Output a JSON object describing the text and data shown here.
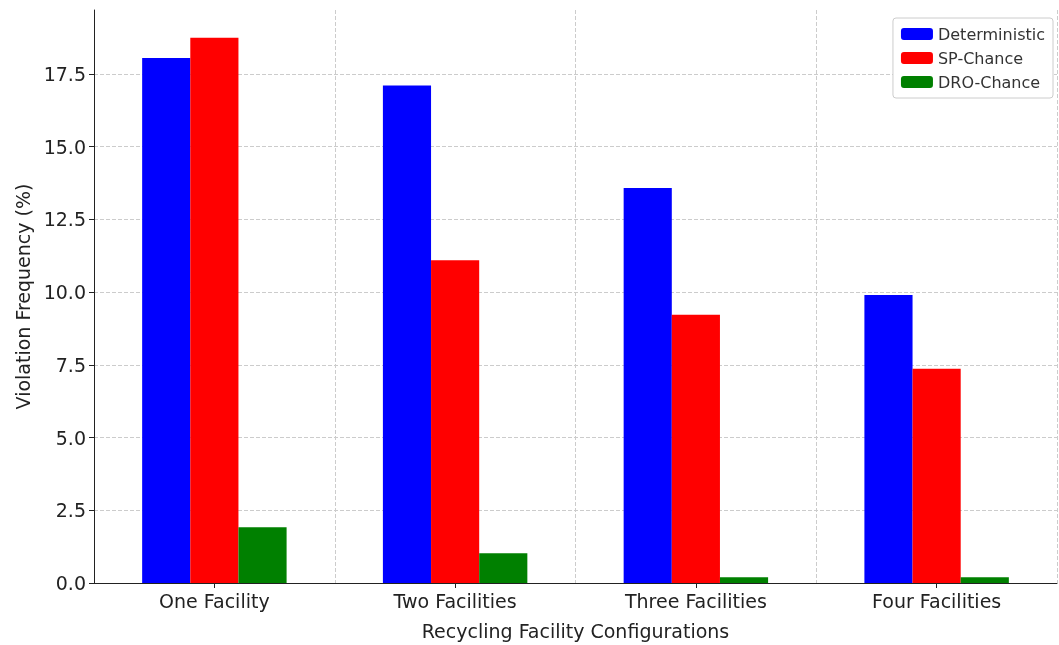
{
  "chart_data": {
    "type": "bar",
    "xlabel": "Recycling Facility Configurations",
    "ylabel": "Violation Frequency (%)",
    "categories": [
      "One Facility",
      "Two Facilities",
      "Three Facilities",
      "Four Facilities"
    ],
    "series": [
      {
        "name": "Deterministic",
        "color": "#0000ff",
        "values": [
          18.05,
          17.1,
          13.58,
          9.9
        ]
      },
      {
        "name": "SP-Chance",
        "color": "#ff0000",
        "values": [
          18.75,
          11.1,
          9.22,
          7.37
        ]
      },
      {
        "name": "DRO-Chance",
        "color": "#008000",
        "values": [
          1.92,
          1.02,
          0.2,
          0.2
        ]
      }
    ],
    "ylim": [
      0,
      19.7
    ],
    "yticks": [
      {
        "value": 0,
        "label": "0.0"
      },
      2.5,
      {
        "value": 5,
        "label": "5.0"
      },
      7.5,
      {
        "value": 10,
        "label": "10.0"
      },
      12.5,
      {
        "value": 15,
        "label": "15.0"
      },
      17.5
    ],
    "grid": true,
    "legend": "top right"
  }
}
